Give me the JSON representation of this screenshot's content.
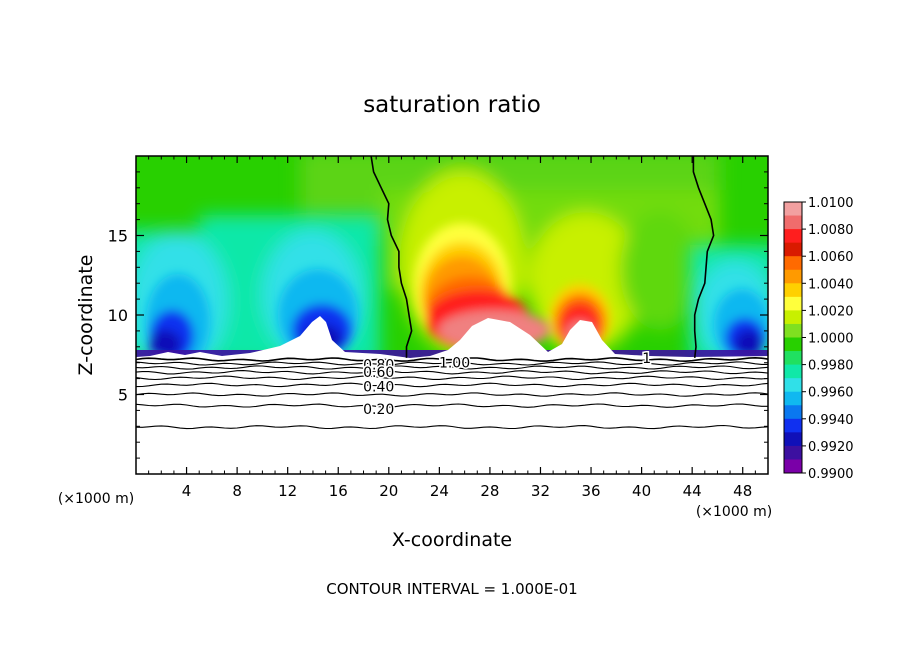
{
  "chart_data": {
    "type": "heatmap",
    "title": "saturation ratio",
    "xlabel": "X-coordinate",
    "ylabel": "Z-coordinate",
    "x_unit_left": "(×1000 m)",
    "x_unit_right": "(×1000 m)",
    "xlim": [
      0,
      50
    ],
    "ylim": [
      0,
      20
    ],
    "xticks": [
      4,
      8,
      12,
      16,
      20,
      24,
      28,
      32,
      36,
      40,
      44,
      48
    ],
    "yticks": [
      5,
      10,
      15
    ],
    "footer": "CONTOUR INTERVAL = 1.000E-01",
    "colorbar": {
      "ticks": [
        "1.0100",
        "1.0080",
        "1.0060",
        "1.0040",
        "1.0020",
        "1.0000",
        "0.9980",
        "0.9960",
        "0.9940",
        "0.9920",
        "0.9900"
      ],
      "colors": [
        "#f2a0a0",
        "#f06c6c",
        "#ff1e1e",
        "#d91a00",
        "#ff6a00",
        "#ff9a00",
        "#ffd000",
        "#ffff3c",
        "#c8f000",
        "#80e020",
        "#28d000",
        "#20e060",
        "#10e8a8",
        "#30e0e8",
        "#10b8f0",
        "#0a78f0",
        "#1030f0",
        "#1010b8",
        "#3c10a0",
        "#7a00a8"
      ],
      "vmin": 0.99,
      "vmax": 1.01
    },
    "contour_labels": [
      {
        "text": "0.80",
        "x": 19.2,
        "z": 6.9
      },
      {
        "text": "0.60",
        "x": 19.2,
        "z": 6.4
      },
      {
        "text": "0.40",
        "x": 19.2,
        "z": 5.5
      },
      {
        "text": "0.20",
        "x": 19.2,
        "z": 4.1
      },
      {
        "text": "1.00",
        "x": 25.2,
        "z": 7.0
      },
      {
        "text": "1",
        "x": 40.4,
        "z": 7.3
      }
    ],
    "contour_lines_z": [
      7.2,
      6.95,
      6.7,
      6.4,
      6.05,
      5.6,
      5.0,
      4.3,
      2.95
    ],
    "cloud_boundary_s1": [
      {
        "name": "left",
        "points": [
          [
            18.6,
            20
          ],
          [
            18.8,
            19
          ],
          [
            19.4,
            18
          ],
          [
            20.0,
            17
          ],
          [
            19.9,
            16
          ],
          [
            20.2,
            15
          ],
          [
            20.8,
            14
          ],
          [
            20.8,
            13
          ],
          [
            21.0,
            12
          ],
          [
            21.4,
            11
          ],
          [
            21.6,
            10
          ],
          [
            21.8,
            9
          ],
          [
            21.4,
            8
          ],
          [
            21.4,
            7.3
          ]
        ]
      },
      {
        "name": "right",
        "points": [
          [
            44.1,
            20
          ],
          [
            44.1,
            19
          ],
          [
            44.5,
            18
          ],
          [
            45.5,
            16
          ],
          [
            45.7,
            15
          ],
          [
            45.2,
            14
          ],
          [
            45.0,
            12
          ],
          [
            44.5,
            11
          ],
          [
            44.2,
            10
          ],
          [
            44.2,
            9
          ],
          [
            44.3,
            8
          ],
          [
            44.2,
            7.3
          ]
        ]
      }
    ]
  }
}
